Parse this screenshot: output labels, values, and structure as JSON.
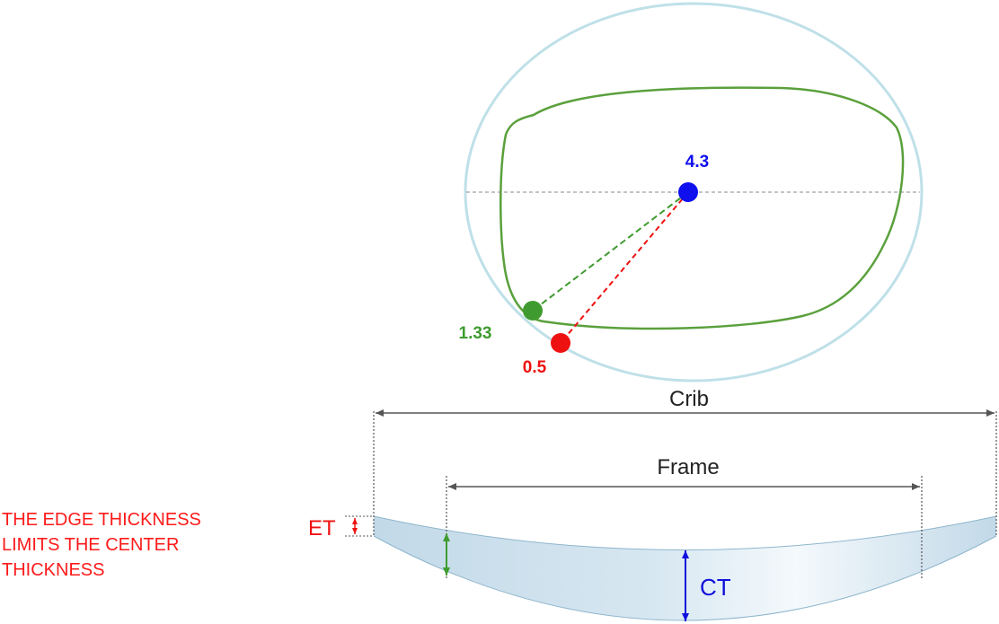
{
  "labels": {
    "center_value": "4.3",
    "frame_edge_value": "1.33",
    "crib_edge_value": "0.5",
    "crib": "Crib",
    "frame": "Frame",
    "et": "ET",
    "ct": "CT"
  },
  "note": {
    "lines": [
      "THE EDGE THICKNESS",
      "LIMITS THE CENTER",
      "THICKNESS"
    ]
  },
  "colors": {
    "blank_circle": "#bfe0e8",
    "frame_shape": "#5aa03c",
    "center_point": "#1010ee",
    "frame_point": "#3f9b2f",
    "crib_point": "#ee1111",
    "lens_fill": "#cfe3ee",
    "dimension_line": "#555555",
    "ct_arrow": "#1010dd",
    "edge_arrow": "#3f9b2f",
    "et_arrow": "#ee1111",
    "note_text": "#ff1a1a"
  }
}
